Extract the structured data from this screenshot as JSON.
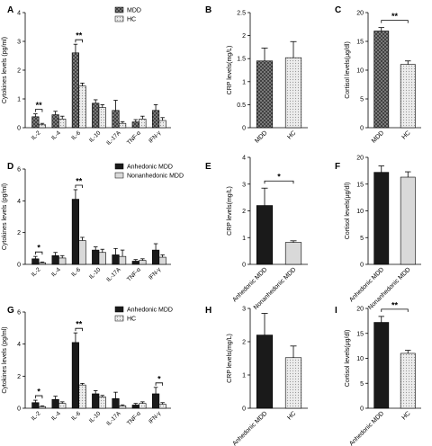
{
  "chart_data": [
    {
      "panel": "A",
      "type": "bar",
      "ylabel": "Cytokines levels (pg/ml)",
      "ylim": [
        0,
        4
      ],
      "yticks": [
        0,
        1,
        2,
        3,
        4
      ],
      "categories": [
        "IL-2",
        "IL-4",
        "IL-6",
        "IL-10",
        "IL-17A",
        "TNF-α",
        "IFN-γ"
      ],
      "series": [
        {
          "name": "MDD",
          "values": [
            0.38,
            0.45,
            2.6,
            0.85,
            0.6,
            0.2,
            0.6
          ],
          "errors": [
            0.1,
            0.12,
            0.3,
            0.12,
            0.35,
            0.08,
            0.2
          ],
          "fill": "#777777",
          "pattern": "cross"
        },
        {
          "name": "HC",
          "values": [
            0.1,
            0.3,
            1.45,
            0.7,
            0.15,
            0.3,
            0.25
          ],
          "errors": [
            0.05,
            0.1,
            0.1,
            0.1,
            0.06,
            0.1,
            0.1
          ],
          "fill": "#dddddd",
          "pattern": "dots"
        }
      ],
      "legend": "top-right",
      "annotations": [
        {
          "category": "IL-2",
          "text": "**"
        },
        {
          "category": "IL-6",
          "text": "**"
        }
      ]
    },
    {
      "panel": "B",
      "type": "bar",
      "ylabel": "CRP levels(mg/L)",
      "ylim": [
        0,
        2.5
      ],
      "yticks": [
        0.0,
        0.5,
        1.0,
        1.5,
        2.0,
        2.5
      ],
      "categories": [
        "MDD",
        "HC"
      ],
      "values": [
        1.45,
        1.52
      ],
      "errors": [
        0.28,
        0.35
      ],
      "fills": [
        "#777777",
        "#dddddd"
      ],
      "patterns": [
        "cross",
        "dots"
      ]
    },
    {
      "panel": "C",
      "type": "bar",
      "ylabel": "Cortisol levels(μg/dl)",
      "ylim": [
        0,
        20
      ],
      "yticks": [
        0,
        5,
        10,
        15,
        20
      ],
      "categories": [
        "MDD",
        "HC"
      ],
      "values": [
        16.8,
        11.0
      ],
      "errors": [
        0.6,
        0.6
      ],
      "fills": [
        "#777777",
        "#dddddd"
      ],
      "patterns": [
        "cross",
        "dots"
      ],
      "annotations": [
        {
          "from": 0,
          "to": 1,
          "text": "**"
        }
      ]
    },
    {
      "panel": "D",
      "type": "bar",
      "ylabel": "Cytokines levels (pg/ml)",
      "ylim": [
        0,
        6
      ],
      "yticks": [
        0,
        2,
        4,
        6
      ],
      "categories": [
        "IL-2",
        "IL-4",
        "IL-6",
        "IL-10",
        "IL-17A",
        "TNF-α",
        "IFN-γ"
      ],
      "series": [
        {
          "name": "Anhedonic MDD",
          "values": [
            0.35,
            0.55,
            4.1,
            0.9,
            0.6,
            0.2,
            0.9
          ],
          "errors": [
            0.15,
            0.2,
            0.6,
            0.2,
            0.4,
            0.1,
            0.4
          ],
          "fill": "#1a1a1a",
          "pattern": "none"
        },
        {
          "name": "Nonanhedonic MDD",
          "values": [
            0.1,
            0.4,
            1.5,
            0.75,
            0.5,
            0.25,
            0.45
          ],
          "errors": [
            0.05,
            0.15,
            0.2,
            0.2,
            0.4,
            0.1,
            0.15
          ],
          "fill": "#d9d9d9",
          "pattern": "none"
        }
      ],
      "legend": "top-right",
      "annotations": [
        {
          "category": "IL-2",
          "text": "*"
        },
        {
          "category": "IL-6",
          "text": "**"
        }
      ]
    },
    {
      "panel": "E",
      "type": "bar",
      "ylabel": "CRP levels(mg/L)",
      "ylim": [
        0,
        4
      ],
      "yticks": [
        0,
        1,
        2,
        3,
        4
      ],
      "categories": [
        "Anhedonic MDD",
        "Nonanhedonic MDD"
      ],
      "values": [
        2.2,
        0.82
      ],
      "errors": [
        0.65,
        0.06
      ],
      "fills": [
        "#1a1a1a",
        "#d9d9d9"
      ],
      "patterns": [
        "none",
        "none"
      ],
      "annotations": [
        {
          "from": 0,
          "to": 1,
          "text": "*"
        }
      ]
    },
    {
      "panel": "F",
      "type": "bar",
      "ylabel": "Cortisol levels(μg/dl)",
      "ylim": [
        0,
        20
      ],
      "yticks": [
        0,
        5,
        10,
        15,
        20
      ],
      "categories": [
        "Anhedonic MDD",
        "Nonanhedonic MDD"
      ],
      "values": [
        17.2,
        16.3
      ],
      "errors": [
        1.2,
        1.0
      ],
      "fills": [
        "#1a1a1a",
        "#d9d9d9"
      ],
      "patterns": [
        "none",
        "none"
      ]
    },
    {
      "panel": "G",
      "type": "bar",
      "ylabel": "Cytokines levels (pg/ml)",
      "ylim": [
        0,
        6
      ],
      "yticks": [
        0,
        2,
        4,
        6
      ],
      "categories": [
        "IL-2",
        "IL-4",
        "IL-6",
        "IL-10",
        "IL-17A",
        "TNF-α",
        "IFN-γ"
      ],
      "series": [
        {
          "name": "Anhedonic MDD",
          "values": [
            0.35,
            0.55,
            4.1,
            0.9,
            0.6,
            0.2,
            0.9
          ],
          "errors": [
            0.15,
            0.2,
            0.6,
            0.2,
            0.4,
            0.1,
            0.4
          ],
          "fill": "#1a1a1a",
          "pattern": "none"
        },
        {
          "name": "HC",
          "values": [
            0.1,
            0.3,
            1.45,
            0.7,
            0.15,
            0.3,
            0.25
          ],
          "errors": [
            0.05,
            0.1,
            0.1,
            0.1,
            0.06,
            0.1,
            0.1
          ],
          "fill": "#dddddd",
          "pattern": "dots"
        }
      ],
      "legend": "top-right",
      "annotations": [
        {
          "category": "IL-2",
          "text": "*"
        },
        {
          "category": "IL-6",
          "text": "**"
        },
        {
          "category": "IFN-γ",
          "text": "*"
        }
      ]
    },
    {
      "panel": "H",
      "type": "bar",
      "ylabel": "CRP levels(mg/L)",
      "ylim": [
        0,
        3
      ],
      "yticks": [
        0,
        1,
        2,
        3
      ],
      "categories": [
        "Anhedonic MDD",
        "HC"
      ],
      "values": [
        2.2,
        1.52
      ],
      "errors": [
        0.65,
        0.35
      ],
      "fills": [
        "#1a1a1a",
        "#dddddd"
      ],
      "patterns": [
        "none",
        "dots"
      ]
    },
    {
      "panel": "I",
      "type": "bar",
      "ylabel": "Cortisol levels(μg/dl)",
      "ylim": [
        0,
        20
      ],
      "yticks": [
        0,
        5,
        10,
        15,
        20
      ],
      "categories": [
        "Anhedonic MDD",
        "HC"
      ],
      "values": [
        17.2,
        11.0
      ],
      "errors": [
        1.2,
        0.6
      ],
      "fills": [
        "#1a1a1a",
        "#dddddd"
      ],
      "patterns": [
        "none",
        "dots"
      ],
      "annotations": [
        {
          "from": 0,
          "to": 1,
          "text": "**"
        }
      ]
    }
  ]
}
